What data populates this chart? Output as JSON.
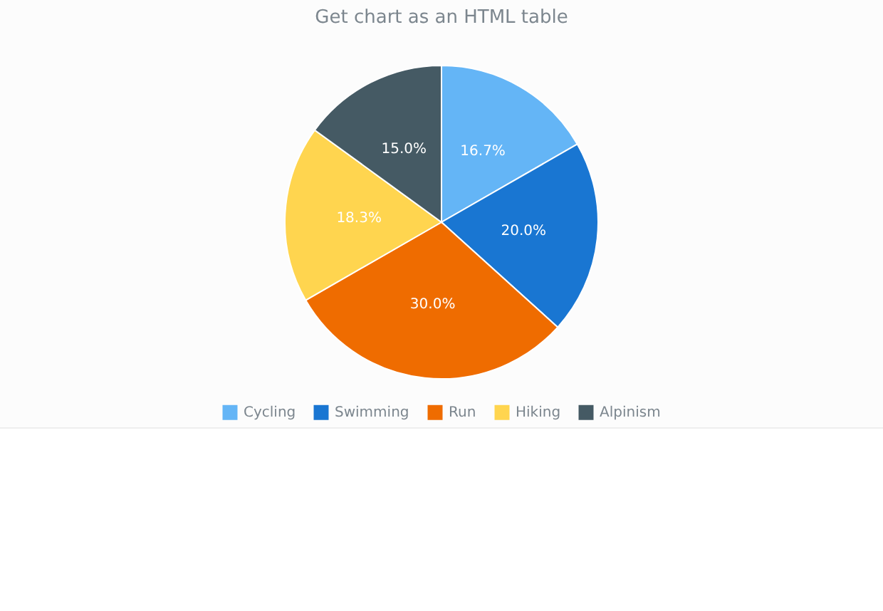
{
  "chart_data": {
    "type": "pie",
    "title": "Get chart as an HTML table",
    "categories": [
      "Cycling",
      "Swimming",
      "Run",
      "Hiking",
      "Alpinism"
    ],
    "values": [
      16.7,
      20.0,
      30.0,
      18.3,
      15.0
    ],
    "value_labels": [
      "16.7%",
      "20.0%",
      "30.0%",
      "18.3%",
      "15.0%"
    ],
    "colors": [
      "#64b5f6",
      "#1976d2",
      "#ef6c00",
      "#ffd54f",
      "#455a64"
    ],
    "legend": "bottom"
  }
}
